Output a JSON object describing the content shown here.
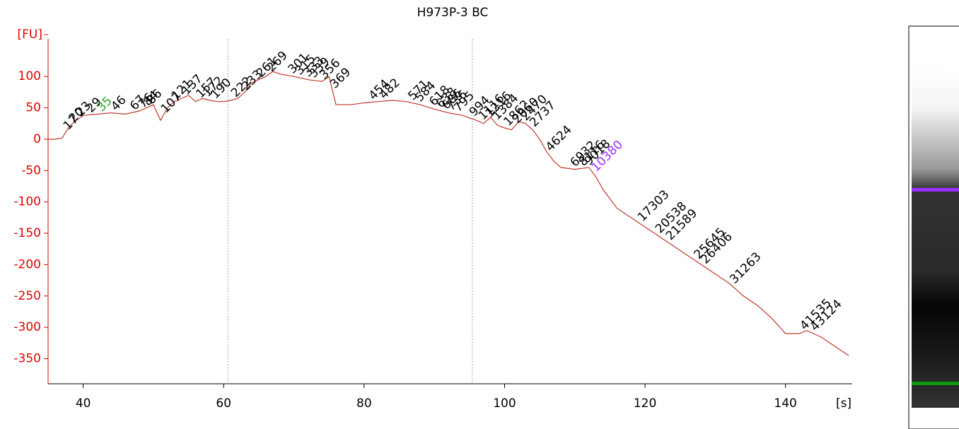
{
  "chart_data": {
    "type": "line",
    "title": "H973P-3 BC",
    "y_label": "[FU]",
    "x_label": "[s]",
    "xlim": [
      35,
      149.5
    ],
    "ylim": [
      -390,
      160
    ],
    "xticks": [
      40,
      60,
      80,
      100,
      120,
      140
    ],
    "yticks": [
      100,
      50,
      0,
      -50,
      -100,
      -150,
      -200,
      -250,
      -300,
      -350
    ],
    "axis_color": "#e00000",
    "marker_lines": [
      60.6,
      95.4
    ],
    "marker_line_color": "#7a8fb0",
    "series": [
      {
        "name": "H973P-3 BC",
        "color": "#c0392b",
        "x": [
          35,
          36,
          37,
          38,
          39,
          40,
          42,
          44,
          46,
          48,
          49,
          50,
          51,
          52,
          53,
          55,
          56,
          57,
          58,
          59,
          60,
          61,
          62,
          63,
          64,
          65,
          66,
          67,
          68,
          70,
          72,
          74,
          75,
          76,
          78,
          80,
          82,
          84,
          86,
          88,
          90,
          92,
          94,
          96,
          97,
          98,
          99,
          100,
          101,
          102,
          103,
          104,
          105,
          106,
          107,
          108,
          110,
          112,
          113,
          114,
          116,
          118,
          120,
          122,
          124,
          126,
          128,
          130,
          132,
          134,
          136,
          138,
          140,
          142,
          143,
          145,
          147,
          149
        ],
        "values": [
          0,
          0,
          2,
          20,
          30,
          38,
          40,
          42,
          40,
          45,
          50,
          55,
          30,
          50,
          60,
          70,
          60,
          65,
          62,
          60,
          60,
          62,
          65,
          75,
          90,
          95,
          100,
          108,
          104,
          100,
          95,
          92,
          100,
          55,
          55,
          58,
          60,
          62,
          60,
          55,
          48,
          42,
          38,
          30,
          25,
          35,
          22,
          18,
          15,
          28,
          25,
          15,
          0,
          -20,
          -35,
          -45,
          -48,
          -45,
          -60,
          -80,
          -110,
          -125,
          -140,
          -155,
          -170,
          -185,
          -200,
          -215,
          -230,
          -250,
          -265,
          -285,
          -310,
          -310,
          -305,
          -315,
          -330,
          -345
        ]
      }
    ],
    "peak_label_color": "#000000",
    "peaks": [
      {
        "size": 17,
        "x": 37.5
      },
      {
        "size": 20,
        "x": 38.3
      },
      {
        "size": 23,
        "x": 39.3
      },
      {
        "size": 29,
        "x": 40.8
      },
      {
        "size": 35,
        "x": 42.3,
        "color": "#2ca02c"
      },
      {
        "size": 46,
        "x": 44.3
      },
      {
        "size": 67,
        "x": 47
      },
      {
        "size": 76,
        "x": 48.2
      },
      {
        "size": 84,
        "x": 48.9
      },
      {
        "size": 86,
        "x": 49.4
      },
      {
        "size": 107,
        "x": 51.4
      },
      {
        "size": 121,
        "x": 52.9
      },
      {
        "size": 137,
        "x": 54.4
      },
      {
        "size": 157,
        "x": 56.4
      },
      {
        "size": 172,
        "x": 57.4
      },
      {
        "size": 190,
        "x": 58.5
      },
      {
        "size": 222,
        "x": 61.4
      },
      {
        "size": 233,
        "x": 62.9
      },
      {
        "size": 261,
        "x": 65
      },
      {
        "size": 269,
        "x": 66.5
      },
      {
        "size": 301,
        "x": 69.5
      },
      {
        "size": 315,
        "x": 70.5
      },
      {
        "size": 333,
        "x": 71.7
      },
      {
        "size": 339,
        "x": 72.5
      },
      {
        "size": 356,
        "x": 74
      },
      {
        "size": 369,
        "x": 75.5
      },
      {
        "size": 454,
        "x": 81
      },
      {
        "size": 482,
        "x": 82.5
      },
      {
        "size": 571,
        "x": 86.6
      },
      {
        "size": 584,
        "x": 87.6
      },
      {
        "size": 618,
        "x": 89.6
      },
      {
        "size": 638,
        "x": 90.6
      },
      {
        "size": 686,
        "x": 91.4
      },
      {
        "size": 736,
        "x": 92.1
      },
      {
        "size": 795,
        "x": 93.1
      },
      {
        "size": 994,
        "x": 95.3
      },
      {
        "size": 1116,
        "x": 96.6
      },
      {
        "size": 1216,
        "x": 97.6
      },
      {
        "size": 1384,
        "x": 98.6
      },
      {
        "size": 1862,
        "x": 100.2
      },
      {
        "size": 2060,
        "x": 101.5
      },
      {
        "size": 2470,
        "x": 102.7
      },
      {
        "size": 2737,
        "x": 103.9
      },
      {
        "size": 4624,
        "x": 106.2
      },
      {
        "size": 6932,
        "x": 109.7
      },
      {
        "size": 8116,
        "x": 110.9
      },
      {
        "size": 9018,
        "x": 111.7
      },
      {
        "size": 10380,
        "x": 112.7,
        "color": "#9b30ff"
      },
      {
        "size": 17303,
        "x": 119.3
      },
      {
        "size": 20538,
        "x": 121.8
      },
      {
        "size": 21589,
        "x": 123.3
      },
      {
        "size": 25645,
        "x": 127.3
      },
      {
        "size": 26406,
        "x": 128.3
      },
      {
        "size": 31263,
        "x": 132.4
      },
      {
        "size": 41535,
        "x": 142.4
      },
      {
        "size": 43124,
        "x": 143.9
      }
    ]
  }
}
